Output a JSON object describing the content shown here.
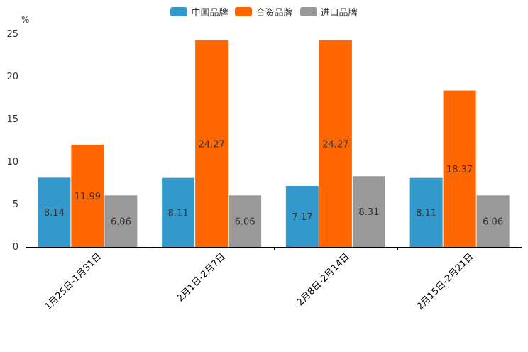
{
  "chart_data": {
    "type": "bar",
    "unit_label": "%",
    "categories": [
      "1月25日-1月31日",
      "2月1日-2月7日",
      "2月8日-2月14日",
      "2月15日-2月21日"
    ],
    "series": [
      {
        "name": "中国品牌",
        "color": "#3399cc",
        "values": [
          8.14,
          8.11,
          7.17,
          8.11
        ]
      },
      {
        "name": "合资品牌",
        "color": "#ff6600",
        "values": [
          11.99,
          24.27,
          24.27,
          18.37
        ]
      },
      {
        "name": "进口品牌",
        "color": "#999999",
        "values": [
          6.06,
          6.06,
          8.31,
          6.06
        ]
      }
    ],
    "ylim": [
      0,
      25
    ],
    "yticks": [
      0,
      5,
      10,
      15,
      20,
      25
    ],
    "grid": false,
    "legend_position": "top-center"
  }
}
